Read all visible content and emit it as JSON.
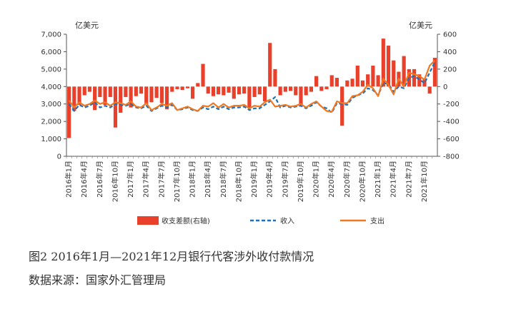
{
  "figure": {
    "title": "图2   2016年1月—2021年12月银行代客涉外收付款情况",
    "source": "数据来源：国家外汇管理局"
  },
  "chart_data": {
    "type": "bar+line",
    "left_unit": "亿美元",
    "right_unit": "亿美元",
    "y_left": {
      "min": 0,
      "max": 7000,
      "step": 1000,
      "ticks": [
        "0",
        "1,000",
        "2,000",
        "3,000",
        "4,000",
        "5,000",
        "6,000",
        "7,000"
      ]
    },
    "y_right": {
      "min": -800,
      "max": 600,
      "step": 200,
      "ticks": [
        "-800",
        "-600",
        "-400",
        "-200",
        "0",
        "200",
        "400",
        "600"
      ]
    },
    "x_tick_labels": [
      "2016年1月",
      "2016年4月",
      "2016年7月",
      "2016年10月",
      "2017年1月",
      "2017年4月",
      "2017年7月",
      "2017年10月",
      "2018年1月",
      "2018年4月",
      "2018年7月",
      "2018年10月",
      "2019年1月",
      "2019年4月",
      "2019年7月",
      "2019年10月",
      "2020年1月",
      "2020年4月",
      "2020年7月",
      "2020年10月",
      "2021年1月",
      "2021年4月",
      "2021年7月",
      "2021年10月"
    ],
    "x": [
      "2016-01",
      "2016-02",
      "2016-03",
      "2016-04",
      "2016-05",
      "2016-06",
      "2016-07",
      "2016-08",
      "2016-09",
      "2016-10",
      "2016-11",
      "2016-12",
      "2017-01",
      "2017-02",
      "2017-03",
      "2017-04",
      "2017-05",
      "2017-06",
      "2017-07",
      "2017-08",
      "2017-09",
      "2017-10",
      "2017-11",
      "2017-12",
      "2018-01",
      "2018-02",
      "2018-03",
      "2018-04",
      "2018-05",
      "2018-06",
      "2018-07",
      "2018-08",
      "2018-09",
      "2018-10",
      "2018-11",
      "2018-12",
      "2019-01",
      "2019-02",
      "2019-03",
      "2019-04",
      "2019-05",
      "2019-06",
      "2019-07",
      "2019-08",
      "2019-09",
      "2019-10",
      "2019-11",
      "2019-12",
      "2020-01",
      "2020-02",
      "2020-03",
      "2020-04",
      "2020-05",
      "2020-06",
      "2020-07",
      "2020-08",
      "2020-09",
      "2020-10",
      "2020-11",
      "2020-12",
      "2021-01",
      "2021-02",
      "2021-03",
      "2021-04",
      "2021-05",
      "2021-06",
      "2021-07",
      "2021-08",
      "2021-09",
      "2021-10",
      "2021-11",
      "2021-12"
    ],
    "series": [
      {
        "name": "收支差额(右轴)",
        "type": "bar",
        "axis": "right",
        "color": "#E8402A",
        "values": [
          -590,
          -280,
          -210,
          -100,
          -60,
          -270,
          -120,
          -210,
          -120,
          -470,
          -300,
          -120,
          -240,
          -110,
          -80,
          -200,
          -180,
          -130,
          -190,
          -260,
          -60,
          -30,
          -40,
          -20,
          -140,
          40,
          260,
          -80,
          -110,
          -90,
          -100,
          -70,
          -140,
          -90,
          -80,
          -250,
          -120,
          -90,
          -170,
          500,
          200,
          -100,
          -60,
          -50,
          -100,
          -230,
          -100,
          -60,
          120,
          -50,
          -30,
          130,
          100,
          -450,
          70,
          90,
          240,
          70,
          140,
          240,
          130,
          550,
          470,
          300,
          170,
          350,
          200,
          200,
          140,
          90,
          -80,
          330
        ]
      },
      {
        "name": "收入",
        "type": "line",
        "axis": "left",
        "color": "#1F6FB8",
        "dashed": true,
        "values": [
          3000,
          2600,
          2950,
          2800,
          2900,
          3100,
          2800,
          2900,
          2800,
          3000,
          2950,
          2900,
          3000,
          2800,
          2750,
          2900,
          2600,
          2750,
          2900,
          2800,
          2950,
          2650,
          2700,
          2800,
          2650,
          2600,
          2800,
          2700,
          2850,
          2700,
          2850,
          2700,
          2800,
          2800,
          2850,
          2650,
          2750,
          2750,
          2950,
          3150,
          3400,
          2800,
          2900,
          2800,
          2850,
          2900,
          2750,
          2900,
          3100,
          2850,
          2750,
          2500,
          3050,
          3000,
          2950,
          3350,
          3500,
          3600,
          3900,
          3800,
          3500,
          4200,
          4150,
          3700,
          4000,
          3900,
          4500,
          4600,
          4400,
          4200,
          4800,
          5400
        ]
      },
      {
        "name": "支出",
        "type": "line",
        "axis": "left",
        "color": "#F07820",
        "dashed": false,
        "values": [
          3200,
          2800,
          3100,
          2900,
          3000,
          3200,
          3000,
          3100,
          2900,
          3100,
          3050,
          2950,
          3150,
          2850,
          2800,
          3050,
          2650,
          2800,
          3000,
          2900,
          3050,
          2650,
          2750,
          2850,
          2700,
          2600,
          2900,
          2850,
          3050,
          2800,
          3000,
          2800,
          2900,
          2900,
          2950,
          2750,
          2900,
          2850,
          3100,
          3250,
          2850,
          2900,
          2950,
          2850,
          2900,
          3000,
          2800,
          3000,
          3150,
          2850,
          2600,
          2550,
          3150,
          3050,
          3050,
          3450,
          3500,
          3700,
          4100,
          3900,
          3450,
          4450,
          4100,
          3550,
          4450,
          4000,
          4800,
          4700,
          4600,
          4400,
          5200,
          5500
        ]
      }
    ],
    "legend": {
      "placement": "bottom"
    },
    "grid": false
  }
}
